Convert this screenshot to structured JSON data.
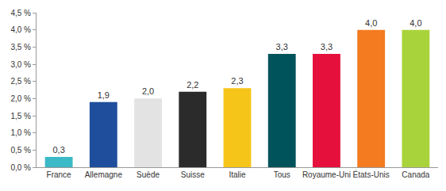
{
  "chart_data": {
    "type": "bar",
    "categories": [
      "France",
      "Allemagne",
      "Suède",
      "Suisse",
      "Italie",
      "Tous",
      "Royaume-Uni",
      "États-Unis",
      "Canada"
    ],
    "values": [
      0.3,
      1.9,
      2.0,
      2.2,
      2.3,
      3.3,
      3.3,
      4.0,
      4.0
    ],
    "value_labels": [
      "0,3",
      "1,9",
      "2,0",
      "2,2",
      "2,3",
      "3,3",
      "3,3",
      "4,0",
      "4,0"
    ],
    "colors": [
      "#3bb9c6",
      "#1f4f9c",
      "#e3e3e3",
      "#2b2b2b",
      "#f6c51a",
      "#00535b",
      "#e5103c",
      "#f47b20",
      "#a9d33b"
    ],
    "data_labels": true,
    "ylim": [
      0,
      4.5
    ],
    "yticks": [
      {
        "value": 0,
        "label": "0,0 %"
      },
      {
        "value": 0.5,
        "label": "0,5 %"
      },
      {
        "value": 1,
        "label": "1,0 %"
      },
      {
        "value": 1.5,
        "label": "1,5 %"
      },
      {
        "value": 2,
        "label": "2,0 %"
      },
      {
        "value": 2.5,
        "label": "2,5 %"
      },
      {
        "value": 3,
        "label": "3,0 %"
      },
      {
        "value": 3.5,
        "label": "3,5 %"
      },
      {
        "value": 4,
        "label": "4,0 %"
      },
      {
        "value": 4.5,
        "label": "4,5 %"
      }
    ],
    "grid": false
  }
}
